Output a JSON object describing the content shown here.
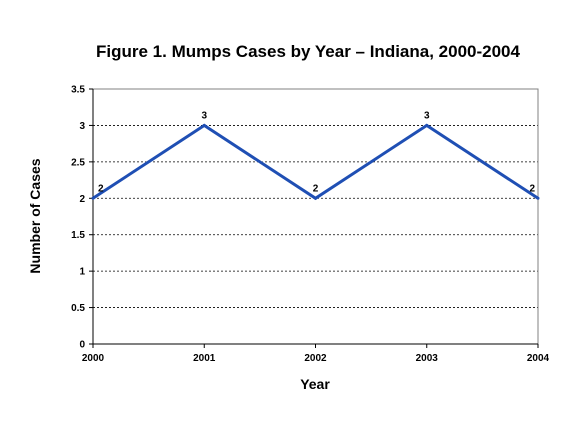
{
  "chart_data": {
    "type": "line",
    "title": "Figure 1.  Mumps Cases by Year – Indiana, 2000-2004",
    "xlabel": "Year",
    "ylabel": "Number of Cases",
    "categories": [
      "2000",
      "2001",
      "2002",
      "2003",
      "2004"
    ],
    "series": [
      {
        "values": [
          2,
          3,
          2,
          3,
          2
        ],
        "color": "#1f4fb4"
      }
    ],
    "data_labels": [
      "2",
      "3",
      "2",
      "3",
      "2"
    ],
    "ylim": [
      0,
      3.5
    ],
    "yticks": [
      "0",
      "0.5",
      "1",
      "1.5",
      "2",
      "2.5",
      "3",
      "3.5"
    ],
    "grid": true,
    "legend": "none"
  }
}
